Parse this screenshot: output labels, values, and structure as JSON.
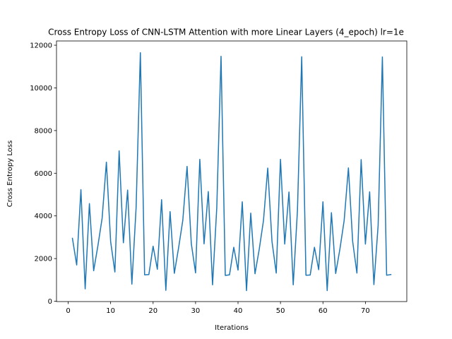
{
  "chart_data": {
    "type": "line",
    "title": "Cross Entropy Loss of CNN-LSTM Attention with more Linear Layers (4_epoch) lr=1e",
    "xlabel": "Iterations",
    "ylabel": "Cross Entropy Loss",
    "xlim": [
      -2.75,
      79.75
    ],
    "ylim": [
      -15,
      12200
    ],
    "xticks": [
      0,
      10,
      20,
      30,
      40,
      50,
      60,
      70
    ],
    "yticks": [
      0,
      2000,
      4000,
      6000,
      8000,
      10000,
      12000
    ],
    "grid": false,
    "series": [
      {
        "color": "#1f77b4",
        "x": [
          1,
          2,
          3,
          4,
          5,
          6,
          7,
          8,
          9,
          10,
          11,
          12,
          13,
          14,
          15,
          16,
          17,
          18,
          19,
          20,
          21,
          22,
          23,
          24,
          25,
          26,
          27,
          28,
          29,
          30,
          31,
          32,
          33,
          34,
          35,
          36,
          37,
          38,
          39,
          40,
          41,
          42,
          43,
          44,
          45,
          46,
          47,
          48,
          49,
          50,
          51,
          52,
          53,
          54,
          55,
          56,
          57,
          58,
          59,
          60,
          61,
          62,
          63,
          64,
          65,
          66,
          67,
          68,
          69,
          70,
          71,
          72,
          73,
          74,
          75,
          76
        ],
        "values": [
          2950,
          1700,
          5230,
          580,
          4580,
          1430,
          2600,
          3900,
          6520,
          2800,
          1370,
          7050,
          2740,
          5210,
          800,
          4400,
          11650,
          1240,
          1250,
          2580,
          1500,
          4760,
          510,
          4200,
          1310,
          2500,
          3800,
          6320,
          2700,
          1330,
          6650,
          2690,
          5140,
          770,
          4400,
          11480,
          1210,
          1240,
          2530,
          1460,
          4660,
          500,
          4130,
          1290,
          2440,
          3790,
          6240,
          2800,
          1320,
          6650,
          2680,
          5120,
          770,
          4270,
          11460,
          1220,
          1230,
          2530,
          1480,
          4660,
          500,
          4150,
          1300,
          2450,
          3790,
          6250,
          2800,
          1320,
          6640,
          2680,
          5130,
          780,
          3560,
          11450,
          1220,
          1250
        ]
      }
    ]
  }
}
